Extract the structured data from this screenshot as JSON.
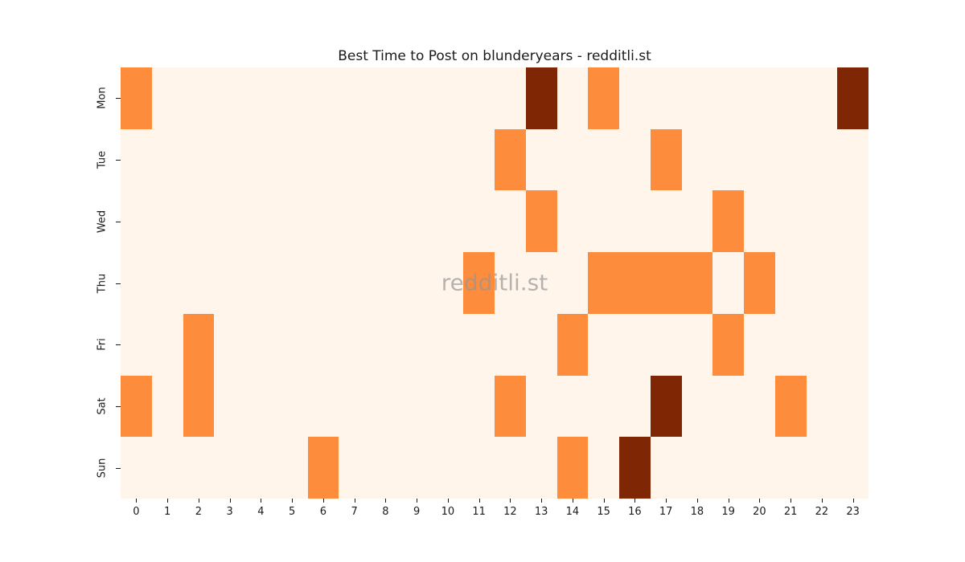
{
  "title": "Best Time to Post on blunderyears - redditli.st",
  "watermark": "redditli.st",
  "colors": {
    "figure_bg": "#ffffff",
    "plot_bg": "#fff5eb",
    "level_colors": [
      "#fff5eb",
      "#fd8d3c",
      "#7f2704"
    ],
    "title_text": "#1a1a1a",
    "tick_text": "#1a1a1a",
    "watermark_text": "rgba(150,150,150,0.70)"
  },
  "chart_data": {
    "type": "heatmap",
    "title": "Best Time to Post on blunderyears - redditli.st",
    "xlabel": "",
    "ylabel": "",
    "grid": false,
    "legend": "none",
    "x_ticks": [
      "0",
      "1",
      "2",
      "3",
      "4",
      "5",
      "6",
      "7",
      "8",
      "9",
      "10",
      "11",
      "12",
      "13",
      "14",
      "15",
      "16",
      "17",
      "18",
      "19",
      "20",
      "21",
      "22",
      "23"
    ],
    "y_ticks": [
      "Mon",
      "Tue",
      "Wed",
      "Thu",
      "Fri",
      "Sat",
      "Sun"
    ],
    "value_levels": [
      0,
      1,
      2
    ],
    "level_color_map": {
      "0": "#fff5eb",
      "1": "#fd8d3c",
      "2": "#7f2704"
    },
    "matrix": [
      [
        1,
        0,
        0,
        0,
        0,
        0,
        0,
        0,
        0,
        0,
        0,
        0,
        0,
        2,
        0,
        1,
        0,
        0,
        0,
        0,
        0,
        0,
        0,
        2
      ],
      [
        0,
        0,
        0,
        0,
        0,
        0,
        0,
        0,
        0,
        0,
        0,
        0,
        1,
        0,
        0,
        0,
        0,
        1,
        0,
        0,
        0,
        0,
        0,
        0
      ],
      [
        0,
        0,
        0,
        0,
        0,
        0,
        0,
        0,
        0,
        0,
        0,
        0,
        0,
        1,
        0,
        0,
        0,
        0,
        0,
        1,
        0,
        0,
        0,
        0
      ],
      [
        0,
        0,
        0,
        0,
        0,
        0,
        0,
        0,
        0,
        0,
        0,
        1,
        0,
        0,
        0,
        1,
        1,
        1,
        1,
        0,
        1,
        0,
        0,
        0
      ],
      [
        0,
        0,
        1,
        0,
        0,
        0,
        0,
        0,
        0,
        0,
        0,
        0,
        0,
        0,
        1,
        0,
        0,
        0,
        0,
        1,
        0,
        0,
        0,
        0
      ],
      [
        1,
        0,
        1,
        0,
        0,
        0,
        0,
        0,
        0,
        0,
        0,
        0,
        1,
        0,
        0,
        0,
        0,
        2,
        0,
        0,
        0,
        1,
        0,
        0
      ],
      [
        0,
        0,
        0,
        0,
        0,
        0,
        1,
        0,
        0,
        0,
        0,
        0,
        0,
        0,
        1,
        0,
        2,
        0,
        0,
        0,
        0,
        0,
        0,
        0
      ]
    ]
  }
}
